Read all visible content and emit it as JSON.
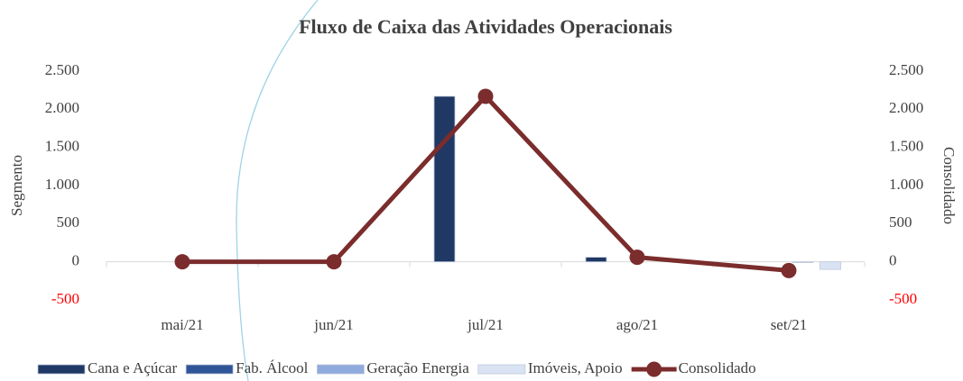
{
  "chart_data": {
    "type": "bar_line",
    "title": "Fluxo de Caixa das Atividades Operacionais",
    "y_label": "Segmento",
    "y2_label": "Consolidado",
    "categories": [
      "mai/21",
      "jun/21",
      "jul/21",
      "ago/21",
      "set/21"
    ],
    "series": [
      {
        "name": "Cana e Açúcar",
        "color": "#1f3864",
        "type": "bar",
        "values": [
          0,
          0,
          2170,
          60,
          0
        ]
      },
      {
        "name": "Fab. Álcool",
        "color": "#2f5597",
        "type": "bar",
        "values": [
          0,
          0,
          0,
          0,
          0
        ]
      },
      {
        "name": "Geração Energia",
        "color": "#8faadc",
        "type": "bar",
        "values": [
          0,
          0,
          0,
          0,
          -10
        ]
      },
      {
        "name": "Imóveis, Apoio",
        "color": "#dae3f3",
        "type": "bar",
        "values": [
          0,
          0,
          0,
          0,
          -100
        ]
      },
      {
        "name": "Consolidado",
        "color": "#7b2c2c",
        "type": "line",
        "axis": "y2",
        "values": [
          0,
          0,
          2170,
          60,
          -115
        ]
      }
    ],
    "ylim": [
      -500,
      2500
    ],
    "yticks": [
      -500,
      0,
      {
        "value": 500,
        "label": "500"
      },
      {
        "value": 1000,
        "label": "1.000"
      },
      {
        "value": 1500,
        "label": "1.500"
      },
      {
        "value": 2000,
        "label": "2.000"
      },
      {
        "value": 2500,
        "label": "2.500"
      }
    ],
    "y2lim": [
      -500,
      2500
    ],
    "y2ticks": [
      -500,
      0,
      {
        "value": 500,
        "label": "500"
      },
      {
        "value": 1000,
        "label": "1.000"
      },
      {
        "value": 1500,
        "label": "1.500"
      },
      {
        "value": 2000,
        "label": "2.000"
      },
      {
        "value": 2500,
        "label": "2.500"
      }
    ],
    "negative_tick_color": "#ff0000",
    "grid": false,
    "legend": "bottom"
  }
}
